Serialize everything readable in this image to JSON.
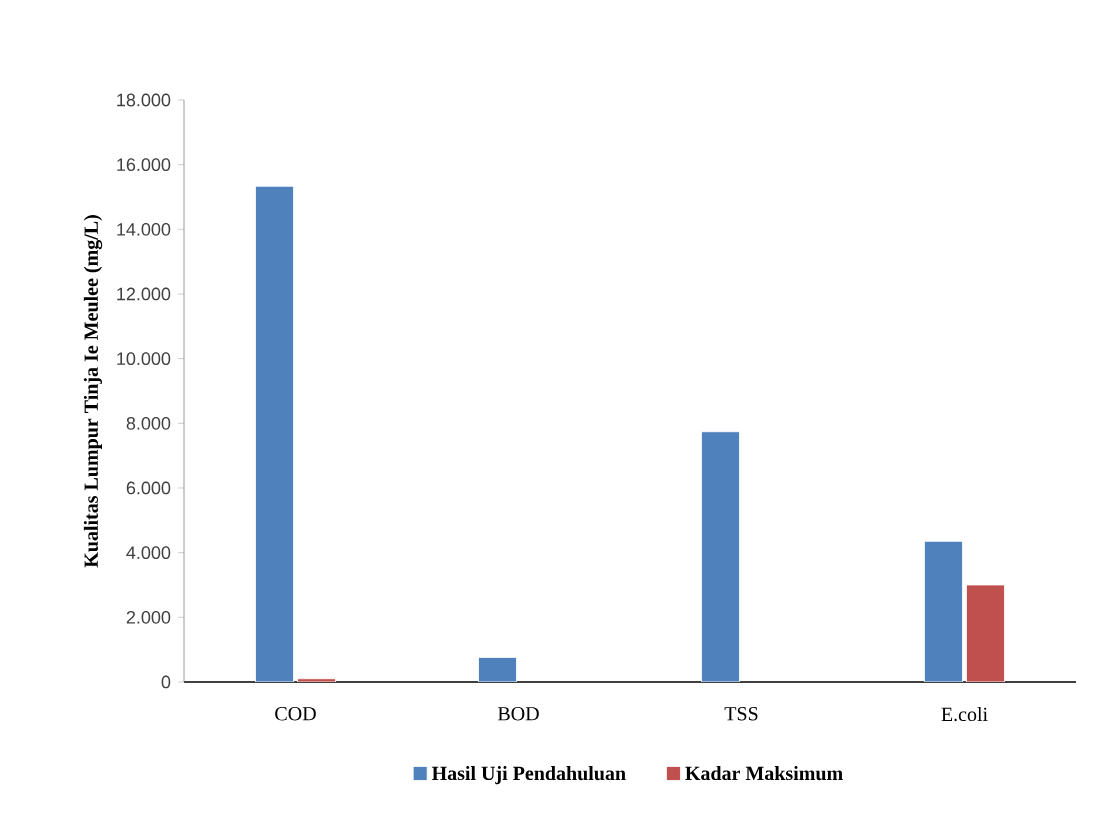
{
  "chart_data": {
    "type": "bar",
    "ylabel": "Kualitas Lumpur Tinja Ie Meulee (mg/L)",
    "categories": [
      "COD",
      "BOD",
      "TSS",
      "E.coli"
    ],
    "series": [
      {
        "name": "Hasil Uji Pendahuluan",
        "color": "#4f81bd",
        "values": [
          15330,
          760,
          7740,
          4350
        ]
      },
      {
        "name": "Kadar Maksimum",
        "color": "#c0504d",
        "values": [
          100,
          null,
          null,
          3000
        ]
      }
    ],
    "ylim": [
      0,
      18000
    ],
    "yticks": [
      0,
      {
        "value": 2000,
        "label": "2.000"
      },
      {
        "value": 4000,
        "label": "4.000"
      },
      {
        "value": 6000,
        "label": "6.000"
      },
      {
        "value": 8000,
        "label": "8.000"
      },
      {
        "value": 10000,
        "label": "10.000"
      },
      {
        "value": 12000,
        "label": "12.000"
      },
      {
        "value": 14000,
        "label": "14.000"
      },
      {
        "value": 16000,
        "label": "16.000"
      },
      {
        "value": 18000,
        "label": "18.000"
      }
    ],
    "grid": false,
    "legend": "bottom"
  }
}
